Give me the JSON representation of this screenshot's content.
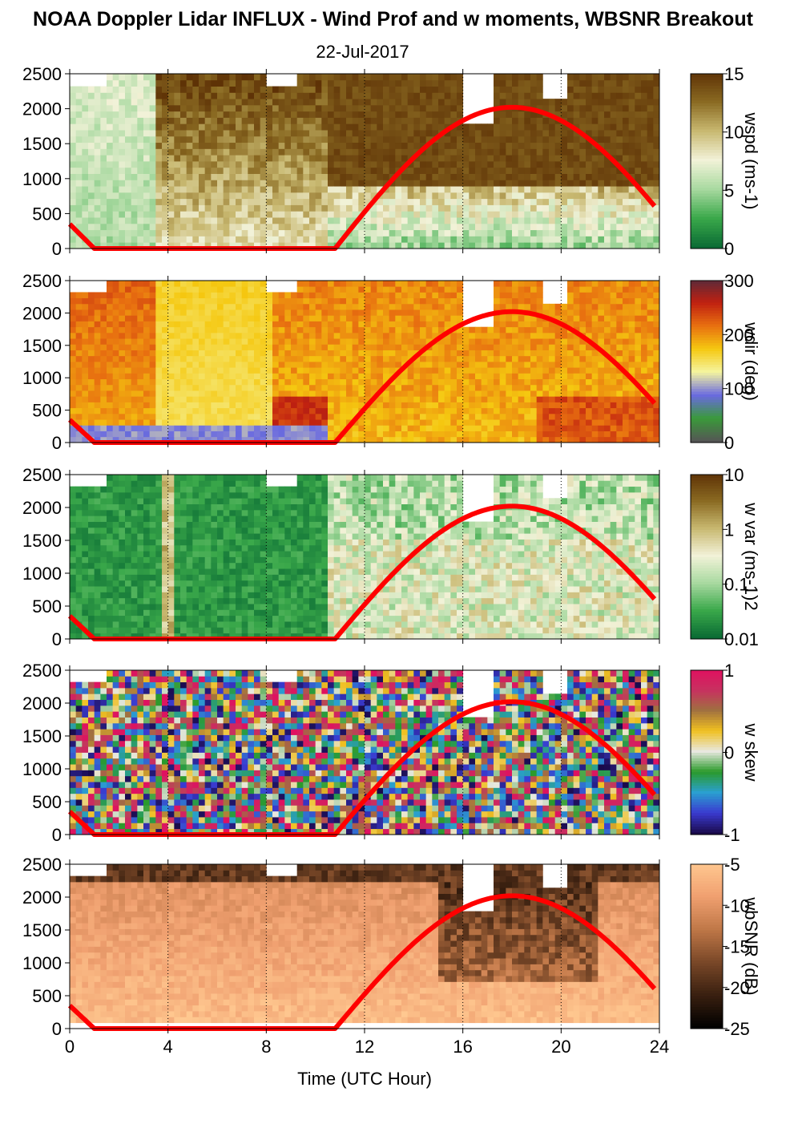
{
  "title": "NOAA Doppler Lidar INFLUX - Wind Prof and w moments, WBSNR Breakout",
  "date": "22-Jul-2017",
  "xlabel": "Time (UTC Hour)",
  "chart_data": [
    {
      "type": "heatmap",
      "name": "wspd",
      "colorbar_label": "wspd (ms-1)",
      "colorbar_ticks": [
        "0",
        "5",
        "10",
        "15"
      ],
      "clim": [
        0,
        15
      ],
      "colormap": [
        "#0a6b34",
        "#3aa84a",
        "#a8d9a0",
        "#f2f2d8",
        "#c8b870",
        "#8a6a22",
        "#5e3206"
      ],
      "xlim": [
        0,
        24
      ],
      "ylim": [
        0,
        2500
      ],
      "xticks": [
        0,
        4,
        8,
        12,
        16,
        20,
        24
      ],
      "yticks": [
        0,
        500,
        1000,
        1500,
        2000,
        2500
      ],
      "daylight_curve": "red sinusoid, peak ~2000 at hour 18, zero between hours 1 and 10.8"
    },
    {
      "type": "heatmap",
      "name": "wdir",
      "colorbar_label": "wdir (deg)",
      "colorbar_ticks": [
        "0",
        "100",
        "200",
        "300"
      ],
      "clim": [
        0,
        360
      ],
      "colormap": [
        "#555555",
        "#3a9a3a",
        "#6a6ae0",
        "#f5f5a0",
        "#f5c810",
        "#e87010",
        "#c02010",
        "#5a2a3a"
      ],
      "xlim": [
        0,
        24
      ],
      "ylim": [
        0,
        2500
      ],
      "xticks": [
        0,
        4,
        8,
        12,
        16,
        20,
        24
      ],
      "yticks": [
        0,
        500,
        1000,
        1500,
        2000,
        2500
      ]
    },
    {
      "type": "heatmap",
      "name": "w var",
      "colorbar_label": "w var (ms-1)2",
      "colorbar_ticks": [
        "0.01",
        "0.1",
        "1",
        "10"
      ],
      "clim": [
        0.01,
        10
      ],
      "scale": "log",
      "colormap": [
        "#0a6b34",
        "#3aa84a",
        "#a8d9a0",
        "#f2f2d8",
        "#c8b870",
        "#8a6a22",
        "#5e3206"
      ],
      "xlim": [
        0,
        24
      ],
      "ylim": [
        0,
        2500
      ],
      "xticks": [
        0,
        4,
        8,
        12,
        16,
        20,
        24
      ],
      "yticks": [
        0,
        500,
        1000,
        1500,
        2000,
        2500
      ]
    },
    {
      "type": "heatmap",
      "name": "w skew",
      "colorbar_label": "w skew",
      "colorbar_ticks": [
        "-1",
        "0",
        "1"
      ],
      "clim": [
        -1,
        1
      ],
      "colormap": [
        "#1a0a4a",
        "#3a3ad0",
        "#2aa0d0",
        "#2a9a2a",
        "#e8e8e0",
        "#f0c020",
        "#a07040",
        "#c83060",
        "#e01060"
      ],
      "xlim": [
        0,
        24
      ],
      "ylim": [
        0,
        2500
      ],
      "xticks": [
        0,
        4,
        8,
        12,
        16,
        20,
        24
      ],
      "yticks": [
        0,
        500,
        1000,
        1500,
        2000,
        2500
      ]
    },
    {
      "type": "heatmap",
      "name": "wbSNR",
      "colorbar_label": "wbSNR (dB)",
      "colorbar_ticks": [
        "-25",
        "-20",
        "-15",
        "-10",
        "-5"
      ],
      "clim": [
        -25,
        -5
      ],
      "colormap": [
        "#000000",
        "#3a2010",
        "#7a4828",
        "#c07848",
        "#f0a070",
        "#ffc890"
      ],
      "xlim": [
        0,
        24
      ],
      "ylim": [
        0,
        2500
      ],
      "xticks": [
        0,
        4,
        8,
        12,
        16,
        20,
        24
      ],
      "yticks": [
        0,
        500,
        1000,
        1500,
        2000,
        2500
      ]
    }
  ]
}
